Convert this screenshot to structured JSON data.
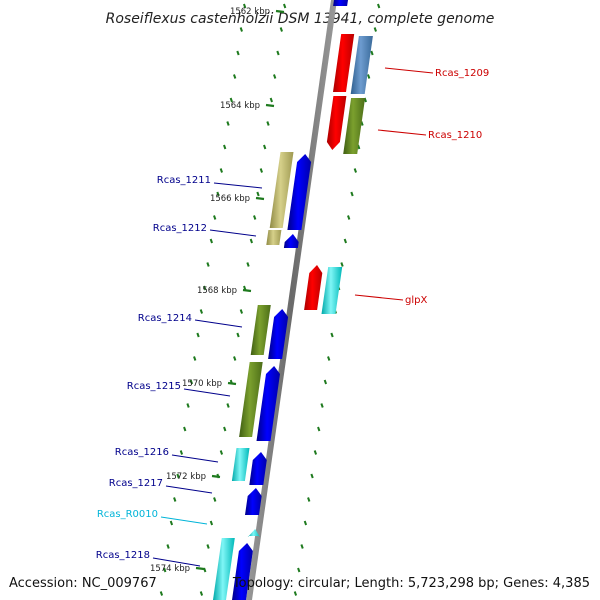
{
  "title": "Roseiflexus castenholzii DSM 13941, complete genome",
  "accession": "Accession: NC_009767",
  "topology": "Topology: circular; Length: 5,723,298 bp; Genes: 4,385",
  "colors": {
    "backbone": "#808080",
    "tick": "#1e7a1e",
    "label_blue": "#00008b",
    "label_red": "#cc0000",
    "label_cyan": "#00b4d8",
    "gene_blue": "#0000ff",
    "gene_red": "#ff0000",
    "gene_steelblue": "#4a7fb5",
    "gene_olive": "#6b8e23",
    "gene_khaki": "#bdb76b",
    "gene_cyan": "#00e0e0"
  },
  "kbp_markers": [
    {
      "label": "1562 kbp"
    },
    {
      "label": "1564 kbp"
    },
    {
      "label": "1566 kbp"
    },
    {
      "label": "1568 kbp"
    },
    {
      "label": "1570 kbp"
    },
    {
      "label": "1572 kbp"
    },
    {
      "label": "1574 kbp"
    }
  ],
  "gene_labels": [
    {
      "id": "Rcas_1209",
      "label": "Rcas_1209",
      "color": "red"
    },
    {
      "id": "Rcas_1210",
      "label": "Rcas_1210",
      "color": "red"
    },
    {
      "id": "Rcas_1211",
      "label": "Rcas_1211",
      "color": "blue"
    },
    {
      "id": "Rcas_1212",
      "label": "Rcas_1212",
      "color": "blue"
    },
    {
      "id": "glpX",
      "label": "glpX",
      "color": "red"
    },
    {
      "id": "Rcas_1214",
      "label": "Rcas_1214",
      "color": "blue"
    },
    {
      "id": "Rcas_1215",
      "label": "Rcas_1215",
      "color": "blue"
    },
    {
      "id": "Rcas_1216",
      "label": "Rcas_1216",
      "color": "blue"
    },
    {
      "id": "Rcas_1217",
      "label": "Rcas_1217",
      "color": "blue"
    },
    {
      "id": "Rcas_R0010",
      "label": "Rcas_R0010",
      "color": "cyan"
    },
    {
      "id": "Rcas_1218",
      "label": "Rcas_1218",
      "color": "blue"
    }
  ]
}
